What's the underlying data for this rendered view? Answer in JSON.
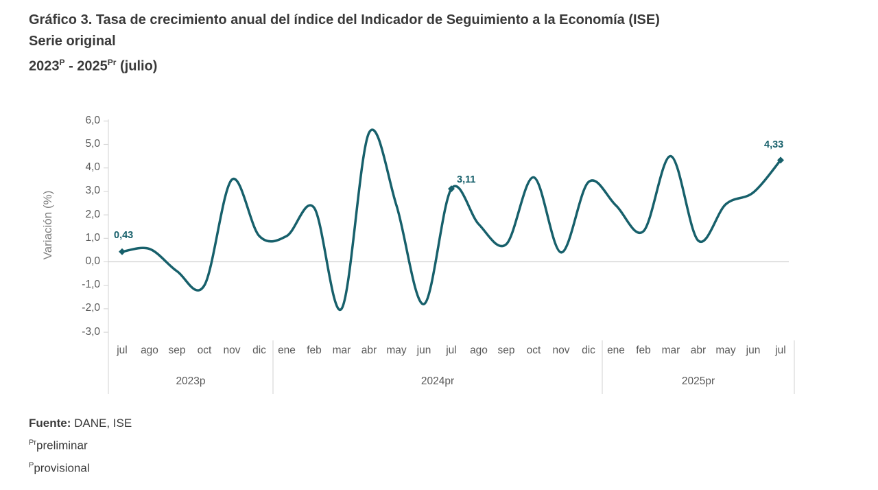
{
  "title": {
    "line1": "Gráfico 3. Tasa de crecimiento anual del índice del Indicador de Seguimiento a la Economía (ISE)",
    "line2": "Serie original",
    "period": {
      "start_year": "2023",
      "start_sup": "P",
      "separator": " - ",
      "end_year": "2025",
      "end_sup": "Pr",
      "suffix": " (julio)"
    }
  },
  "chart_data": {
    "type": "line",
    "title": "Gráfico 3. Tasa de crecimiento anual del índice del Indicador de Seguimiento a la Economía (ISE) - Serie original - 2023P - 2025Pr (julio)",
    "xlabel": "",
    "ylabel": "Variación (%)",
    "ylim": [
      -3.0,
      6.0
    ],
    "grid": "zero-line-only",
    "legend": "none",
    "line_color": "#17606b",
    "yticks": [
      {
        "value": 6,
        "label": "6,0"
      },
      {
        "value": 5,
        "label": "5,0"
      },
      {
        "value": 4,
        "label": "4,0"
      },
      {
        "value": 3,
        "label": "3,0"
      },
      {
        "value": 2,
        "label": "2,0"
      },
      {
        "value": 1,
        "label": "1,0"
      },
      {
        "value": 0,
        "label": "0,0"
      },
      {
        "value": -1,
        "label": "-1,0"
      },
      {
        "value": -2,
        "label": "-2,0"
      },
      {
        "value": -3,
        "label": "-3,0"
      }
    ],
    "groups": [
      {
        "label": "2023p",
        "months": [
          "jul",
          "ago",
          "sep",
          "oct",
          "nov",
          "dic"
        ]
      },
      {
        "label": "2024pr",
        "months": [
          "ene",
          "feb",
          "mar",
          "abr",
          "may",
          "jun",
          "jul",
          "ago",
          "sep",
          "oct",
          "nov",
          "dic"
        ]
      },
      {
        "label": "2025pr",
        "months": [
          "ene",
          "feb",
          "mar",
          "abr",
          "may",
          "jun",
          "jul"
        ]
      }
    ],
    "values": [
      0.43,
      0.55,
      -0.4,
      -1.0,
      3.5,
      1.1,
      1.1,
      2.3,
      -2.0,
      5.5,
      2.4,
      -1.8,
      3.11,
      1.6,
      0.75,
      3.6,
      0.4,
      3.4,
      2.4,
      1.3,
      4.5,
      0.9,
      2.45,
      2.95,
      4.33
    ],
    "highlights": [
      {
        "index": 0,
        "label": "0,43"
      },
      {
        "index": 12,
        "label": "3,11"
      },
      {
        "index": 24,
        "label": "4,33"
      }
    ]
  },
  "footer": {
    "source_label": "Fuente:",
    "source_text": "DANE, ISE",
    "note1_sup": "Pr",
    "note1_text": "preliminar",
    "note2_sup": "P",
    "note2_text": "provisional"
  }
}
